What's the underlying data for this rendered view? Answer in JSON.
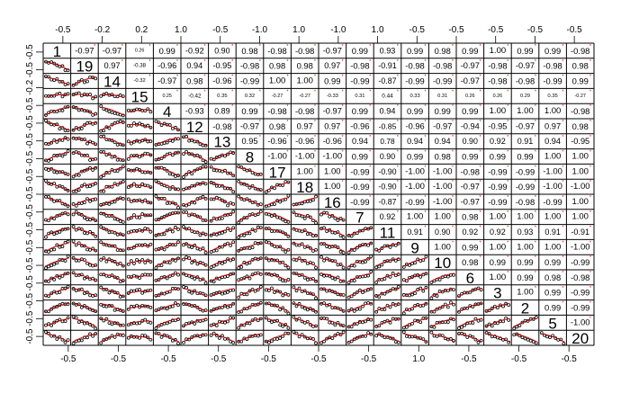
{
  "chart_data": {
    "type": "scatter",
    "subtype": "correlation-scatterplot-matrix",
    "variables": [
      "1",
      "19",
      "14",
      "15",
      "4",
      "12",
      "13",
      "8",
      "17",
      "18",
      "16",
      "7",
      "11",
      "9",
      "10",
      "6",
      "3",
      "2",
      "5",
      "20"
    ],
    "correlation_rows": [
      [
        "-0.97",
        "-0.97",
        "0.26",
        "0.99",
        "-0.92",
        "0.90",
        "0.98",
        "-0.98",
        "-0.98",
        "-0.97",
        "0.99",
        "0.93",
        "0.99",
        "0.98",
        "0.99",
        "1.00",
        "0.99",
        "0.99",
        "-0.98"
      ],
      [
        "0.97",
        "-0.38",
        "-0.96",
        "0.94",
        "-0.95",
        "-0.98",
        "0.98",
        "0.98",
        "0.97",
        "-0.98",
        "-0.91",
        "-0.98",
        "-0.98",
        "-0.97",
        "-0.98",
        "-0.97",
        "-0.98",
        "0.98"
      ],
      [
        "-0.32",
        "-0.97",
        "0.98",
        "-0.96",
        "-0.99",
        "1.00",
        "1.00",
        "0.99",
        "-0.99",
        "-0.87",
        "-0.99",
        "-0.99",
        "-0.97",
        "-0.98",
        "-0.98",
        "-0.99",
        "0.99"
      ],
      [
        "0.25",
        "-0.42",
        "0.35",
        "0.32",
        "-0.27",
        "-0.27",
        "-0.33",
        "0.31",
        "0.44",
        "0.33",
        "0.31",
        "0.26",
        "0.26",
        "0.29",
        "0.35",
        "-0.27"
      ],
      [
        "-0.93",
        "0.89",
        "0.99",
        "-0.98",
        "-0.98",
        "-0.97",
        "0.99",
        "0.94",
        "0.99",
        "0.99",
        "0.99",
        "1.00",
        "1.00",
        "1.00",
        "-0.98"
      ],
      [
        "-0.98",
        "-0.97",
        "0.98",
        "0.97",
        "0.97",
        "-0.96",
        "-0.85",
        "-0.96",
        "-0.97",
        "-0.94",
        "-0.95",
        "-0.97",
        "0.97",
        "0.98"
      ],
      [
        "0.95",
        "-0.96",
        "-0.96",
        "-0.96",
        "0.94",
        "0.78",
        "0.94",
        "0.94",
        "0.90",
        "0.92",
        "0.91",
        "0.94",
        "-0.95"
      ],
      [
        "-1.00",
        "-1.00",
        "-1.00",
        "0.99",
        "0.90",
        "0.99",
        "0.98",
        "0.99",
        "0.99",
        "0.99",
        "1.00",
        "1.00"
      ],
      [
        "1.00",
        "1.00",
        "-0.99",
        "-0.90",
        "-1.00",
        "-1.00",
        "-0.98",
        "-0.99",
        "-0.99",
        "-1.00",
        "1.00"
      ],
      [
        "1.00",
        "-0.99",
        "-0.90",
        "-1.00",
        "-1.00",
        "-0.97",
        "-0.99",
        "-0.99",
        "-1.00",
        "-1.00"
      ],
      [
        "-0.99",
        "-0.87",
        "-0.99",
        "-1.00",
        "-0.97",
        "-0.99",
        "-0.98",
        "-0.99",
        "1.00"
      ],
      [
        "0.92",
        "1.00",
        "1.00",
        "0.98",
        "1.00",
        "1.00",
        "1.00",
        "1.00"
      ],
      [
        "0.91",
        "0.90",
        "0.92",
        "0.92",
        "0.93",
        "0.91",
        "-0.91"
      ],
      [
        "1.00",
        "0.99",
        "1.00",
        "1.00",
        "1.00",
        "-1.00"
      ],
      [
        "0.98",
        "0.99",
        "0.99",
        "0.99",
        "-0.99"
      ],
      [
        "1.00",
        "0.99",
        "0.98",
        "-0.98"
      ],
      [
        "1.00",
        "0.99",
        "-0.99"
      ],
      [
        "0.99",
        "-0.99"
      ],
      [
        "-1.00"
      ]
    ],
    "tick_labels": {
      "top": [
        "-0.5",
        "-0.2",
        "0.2",
        "1.0",
        "-0.5",
        "-1.0",
        "1.0",
        "-1.0",
        "1.0",
        "-0.5",
        "-0.5",
        "-0.5",
        "-0.5",
        "-0.5"
      ],
      "bottom": [
        "-0.5",
        "-0.5",
        "-0.5",
        "-0.5",
        "-0.5",
        "-0.5",
        "-0.5",
        "1.0",
        "-0.5",
        "-0.5",
        "-0.5"
      ],
      "left": [
        "-0.5",
        "-0.5",
        "-0.2",
        "-0.5",
        "-0.5",
        "-0.5",
        "-0.5",
        "-0.5",
        "-0.5",
        "-0.5",
        "-0.5",
        "-0.5",
        "-0.5",
        "-0.5",
        "-0.5",
        "-0.5",
        "-0.5"
      ]
    },
    "colors": {
      "points": "#000000",
      "smooth": "#cc0000",
      "grid": "#000000",
      "text": "#000000"
    }
  }
}
